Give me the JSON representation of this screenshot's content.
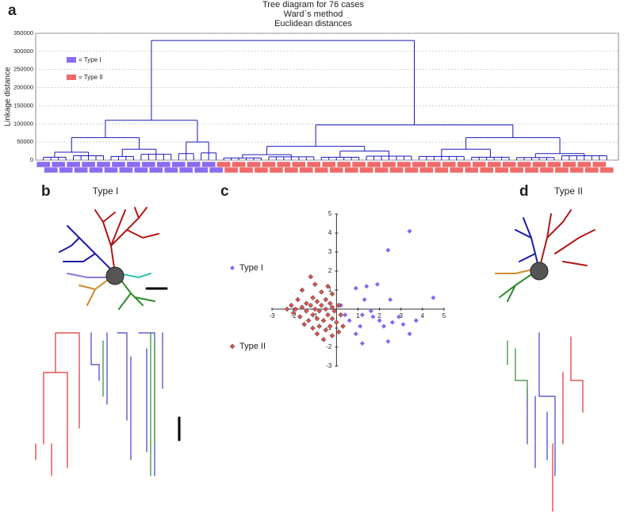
{
  "panel_labels": [
    "a",
    "b",
    "c",
    "d"
  ],
  "neurons": [
    {
      "title": "Type I"
    },
    {
      "title": "Type II"
    }
  ],
  "chart_data": [
    {
      "type": "dendrogram",
      "title": [
        "Tree diagram for 76 cases",
        "Ward`s method",
        "Euclidean distances"
      ],
      "y_label": "Linkage distance",
      "ylim": [
        0,
        350000
      ],
      "yticks": [
        0,
        50000,
        100000,
        150000,
        200000,
        250000,
        300000,
        350000
      ],
      "grid": true,
      "color": "#1a1ab8",
      "series": [
        {
          "name": "= Type I",
          "color": "#8b6cf2"
        },
        {
          "name": "= Type II",
          "color": "#f06a6a"
        }
      ],
      "tree": {
        "height": 330000,
        "children": [
          {
            "height": 110000,
            "children": [
              {
                "height": 62000,
                "children": [
                  {
                    "height": 22000,
                    "children": [
                      {
                        "height": 8000,
                        "children": [
                          null,
                          null,
                          null,
                          null
                        ]
                      },
                      {
                        "height": 12000,
                        "children": [
                          null,
                          null,
                          null,
                          null,
                          null
                        ]
                      }
                    ]
                  },
                  {
                    "height": 30000,
                    "children": [
                      {
                        "height": 10000,
                        "children": [
                          null,
                          null,
                          null,
                          null
                        ]
                      },
                      {
                        "height": 16000,
                        "children": [
                          null,
                          null,
                          null,
                          null,
                          null
                        ]
                      }
                    ]
                  }
                ]
              },
              {
                "height": 50000,
                "children": [
                  {
                    "height": 18000,
                    "children": [
                      null,
                      null,
                      null
                    ]
                  },
                  {
                    "height": 20000,
                    "children": [
                      null,
                      null,
                      null
                    ]
                  }
                ]
              }
            ]
          },
          {
            "height": 97000,
            "children": [
              {
                "height": 38000,
                "children": [
                  {
                    "height": 15000,
                    "children": [
                      {
                        "height": 6000,
                        "children": [
                          null,
                          null,
                          null,
                          null,
                          null,
                          null
                        ]
                      },
                      {
                        "height": 9000,
                        "children": [
                          null,
                          null,
                          null,
                          null,
                          null,
                          null,
                          null
                        ]
                      }
                    ]
                  },
                  {
                    "height": 25000,
                    "children": [
                      {
                        "height": 8000,
                        "children": [
                          null,
                          null,
                          null,
                          null,
                          null,
                          null
                        ]
                      },
                      {
                        "height": 11000,
                        "children": [
                          null,
                          null,
                          null,
                          null,
                          null,
                          null,
                          null
                        ]
                      }
                    ]
                  }
                ]
              },
              {
                "height": 62000,
                "children": [
                  {
                    "height": 30000,
                    "children": [
                      {
                        "height": 10000,
                        "children": [
                          null,
                          null,
                          null,
                          null,
                          null,
                          null,
                          null
                        ]
                      },
                      {
                        "height": 8000,
                        "children": [
                          null,
                          null,
                          null,
                          null,
                          null,
                          null
                        ]
                      }
                    ]
                  },
                  {
                    "height": 18000,
                    "children": [
                      {
                        "height": 7000,
                        "children": [
                          null,
                          null,
                          null,
                          null,
                          null,
                          null
                        ]
                      },
                      {
                        "height": 12000,
                        "children": [
                          null,
                          null,
                          null,
                          null,
                          null,
                          null,
                          null
                        ]
                      }
                    ]
                  }
                ]
              }
            ]
          }
        ]
      }
    },
    {
      "type": "scatter",
      "xlim": [
        -3,
        5
      ],
      "ylim": [
        -3,
        5
      ],
      "xticks": [
        -3,
        -2,
        -1,
        1,
        2,
        3,
        4,
        5
      ],
      "yticks": [
        -3,
        -2,
        -1,
        1,
        2,
        3,
        4,
        5
      ],
      "series": [
        {
          "name": "Type I",
          "color": "#7b6ef0",
          "x": [
            3.4,
            2.4,
            1.4,
            0.9,
            1.9,
            4.5,
            2.5,
            1.3,
            0.2,
            1.6,
            1.2,
            2.9,
            3.7,
            0.4,
            2.0,
            2.6,
            1.1,
            3.1,
            3.4,
            1.2,
            0.9,
            2.2,
            1.7,
            2.4,
            0.6
          ],
          "values": [
            4.1,
            3.1,
            1.2,
            1.1,
            1.3,
            0.6,
            0.5,
            0.5,
            0.2,
            -0.1,
            -0.3,
            -0.4,
            -0.6,
            -0.3,
            -0.6,
            -0.7,
            -0.9,
            -0.8,
            -1.3,
            -1.8,
            -1.3,
            -0.9,
            -0.4,
            -1.7,
            -0.6
          ]
        },
        {
          "name": "Type II",
          "color": "#d9534f",
          "x": [
            -1.2,
            -1.0,
            -0.4,
            -1.6,
            -0.7,
            -0.2,
            -1.1,
            -1.8,
            -0.5,
            -0.9,
            -1.4,
            -0.3,
            -2.1,
            -1.2,
            -0.7,
            0.1,
            -1.6,
            -0.2,
            -2.3,
            -1.9,
            -1.0,
            -0.5,
            -1.4,
            -0.8,
            -0.1,
            -2.0,
            -1.1,
            -0.4,
            0.2,
            -1.7,
            -0.9,
            -0.2,
            -1.3,
            -0.6,
            0.0,
            -1.5,
            -0.8,
            -0.3,
            -1.1,
            -0.5,
            0.1,
            -0.9,
            -0.2,
            0.3,
            -0.6
          ],
          "values": [
            1.7,
            1.3,
            1.2,
            1.0,
            0.9,
            0.8,
            0.6,
            0.5,
            0.5,
            0.4,
            0.3,
            0.3,
            0.2,
            0.2,
            0.2,
            0.2,
            0.1,
            0.1,
            0.0,
            0.0,
            0.0,
            0.0,
            -0.1,
            -0.1,
            -0.1,
            -0.2,
            -0.3,
            -0.3,
            -0.3,
            -0.4,
            -0.5,
            -0.5,
            -0.6,
            -0.6,
            -0.7,
            -0.8,
            -0.9,
            -0.9,
            -1.0,
            -1.1,
            -1.2,
            -1.3,
            -1.4,
            -0.9,
            -1.6
          ]
        }
      ]
    }
  ]
}
